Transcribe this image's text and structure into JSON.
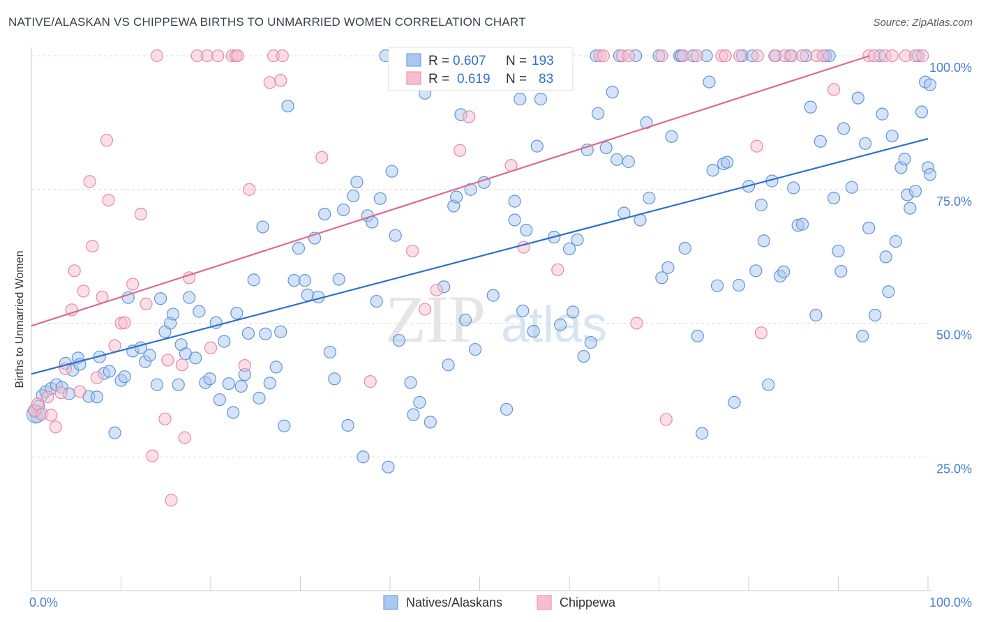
{
  "title": "NATIVE/ALASKAN VS CHIPPEWA BIRTHS TO UNMARRIED WOMEN CORRELATION CHART",
  "source": "Source: ZipAtlas.com",
  "watermark": {
    "zip": "ZIP",
    "atlas": "atlas"
  },
  "colors": {
    "blue_fill": "#a9c7ef",
    "blue_stroke": "#5f95d8",
    "blue_line": "#2e70cc",
    "pink_fill": "#f6bfd0",
    "pink_stroke": "#e987a6",
    "pink_line": "#e0688f",
    "tick_text": "#4a7fd0",
    "grid": "#dddddd"
  },
  "legend": {
    "rows": [
      {
        "r_label": "R = ",
        "r_value": "0.607",
        "n_label": "N = ",
        "n_value": "193"
      },
      {
        "r_label": "R = ",
        "r_value": "0.619",
        "n_label": "N = ",
        "n_value": "83"
      }
    ]
  },
  "bottom_legend": [
    "Natives/Alaskans",
    "Chippewa"
  ],
  "chart_data": {
    "type": "scatter",
    "title": "NATIVE/ALASKAN VS CHIPPEWA BIRTHS TO UNMARRIED WOMEN CORRELATION CHART",
    "xlabel": "",
    "ylabel": "Births to Unmarried Women",
    "xlim": [
      0,
      100
    ],
    "ylim": [
      0,
      100
    ],
    "x_tick_labels": [
      "0.0%",
      "100.0%"
    ],
    "y_tick_labels": [
      "25.0%",
      "50.0%",
      "75.0%",
      "100.0%"
    ],
    "y_ticks": [
      25,
      50,
      75,
      100
    ],
    "grid": "horizontal dashed",
    "legend_position": "top-center",
    "series": [
      {
        "name": "Natives/Alaskans",
        "R": 0.607,
        "N": 193,
        "trend": {
          "x": [
            0,
            100
          ],
          "y": [
            40.5,
            84.5
          ]
        },
        "points": [
          [
            0.4,
            33.5
          ],
          [
            0.6,
            32.5
          ],
          [
            0.8,
            34.5
          ],
          [
            1.2,
            36.5
          ],
          [
            1.6,
            37.2
          ],
          [
            2.2,
            37.8
          ],
          [
            2.8,
            38.5
          ],
          [
            3.4,
            38.0
          ],
          [
            3.8,
            42.5
          ],
          [
            4.2,
            36.8
          ],
          [
            4.6,
            41.2
          ],
          [
            5.2,
            43.5
          ],
          [
            5.4,
            42.3
          ],
          [
            6.4,
            36.3
          ],
          [
            7.3,
            36.2
          ],
          [
            7.6,
            43.7
          ],
          [
            8.1,
            40.6
          ],
          [
            8.7,
            41.0
          ],
          [
            9.3,
            29.5
          ],
          [
            10.0,
            39.3
          ],
          [
            10.4,
            40.0
          ],
          [
            10.8,
            54.8
          ],
          [
            11.3,
            44.8
          ],
          [
            12.2,
            45.4
          ],
          [
            12.7,
            42.8
          ],
          [
            13.2,
            44.0
          ],
          [
            14.0,
            38.5
          ],
          [
            14.4,
            54.6
          ],
          [
            14.9,
            48.4
          ],
          [
            15.5,
            50.0
          ],
          [
            15.8,
            51.7
          ],
          [
            16.4,
            38.5
          ],
          [
            16.7,
            46.0
          ],
          [
            17.2,
            44.3
          ],
          [
            17.6,
            54.8
          ],
          [
            18.3,
            43.5
          ],
          [
            18.7,
            52.2
          ],
          [
            19.4,
            38.9
          ],
          [
            19.9,
            39.6
          ],
          [
            20.6,
            50.1
          ],
          [
            21.0,
            35.7
          ],
          [
            21.5,
            46.6
          ],
          [
            22.0,
            38.7
          ],
          [
            22.5,
            33.3
          ],
          [
            22.9,
            51.9
          ],
          [
            23.4,
            38.2
          ],
          [
            23.8,
            40.4
          ],
          [
            24.2,
            48.1
          ],
          [
            24.8,
            58.1
          ],
          [
            25.4,
            36.0
          ],
          [
            25.8,
            68.0
          ],
          [
            26.1,
            48.0
          ],
          [
            26.6,
            38.8
          ],
          [
            27.3,
            41.8
          ],
          [
            27.8,
            48.4
          ],
          [
            28.2,
            30.8
          ],
          [
            28.6,
            90.6
          ],
          [
            29.3,
            58.0
          ],
          [
            29.8,
            64.0
          ],
          [
            30.5,
            58.0
          ],
          [
            30.8,
            55.3
          ],
          [
            31.6,
            65.9
          ],
          [
            32.0,
            54.9
          ],
          [
            32.7,
            70.4
          ],
          [
            33.3,
            44.6
          ],
          [
            33.8,
            39.6
          ],
          [
            34.3,
            58.2
          ],
          [
            34.8,
            71.2
          ],
          [
            35.3,
            30.9
          ],
          [
            35.9,
            73.8
          ],
          [
            36.3,
            76.4
          ],
          [
            37.0,
            25.0
          ],
          [
            37.5,
            70.1
          ],
          [
            38.0,
            68.9
          ],
          [
            38.5,
            54.1
          ],
          [
            38.9,
            73.3
          ],
          [
            39.5,
            100
          ],
          [
            39.8,
            23.1
          ],
          [
            40.2,
            78.4
          ],
          [
            40.6,
            66.4
          ],
          [
            41.0,
            46.8
          ],
          [
            42.3,
            38.9
          ],
          [
            42.6,
            32.9
          ],
          [
            43.3,
            35.2
          ],
          [
            43.6,
            100
          ],
          [
            43.9,
            93.0
          ],
          [
            44.5,
            31.5
          ],
          [
            44.8,
            97.2
          ],
          [
            46.0,
            56.8
          ],
          [
            46.5,
            42.2
          ],
          [
            47.1,
            71.9
          ],
          [
            47.4,
            73.6
          ],
          [
            47.9,
            89.0
          ],
          [
            48.4,
            50.6
          ],
          [
            49.0,
            75.0
          ],
          [
            49.5,
            45.1
          ],
          [
            50.5,
            76.3
          ],
          [
            51.5,
            55.2
          ],
          [
            53.0,
            33.9
          ],
          [
            53.4,
            100
          ],
          [
            53.9,
            69.3
          ],
          [
            53.9,
            72.8
          ],
          [
            54.5,
            91.9
          ],
          [
            54.8,
            52.3
          ],
          [
            55.2,
            67.4
          ],
          [
            56.0,
            48.5
          ],
          [
            56.4,
            83.1
          ],
          [
            56.8,
            91.9
          ],
          [
            57.8,
            100
          ],
          [
            58.3,
            66.1
          ],
          [
            59.0,
            49.7
          ],
          [
            59.4,
            100
          ],
          [
            60.0,
            63.9
          ],
          [
            60.4,
            52.1
          ],
          [
            60.9,
            65.6
          ],
          [
            61.6,
            43.8
          ],
          [
            62.0,
            82.4
          ],
          [
            62.4,
            46.4
          ],
          [
            63.0,
            100
          ],
          [
            63.2,
            89.2
          ],
          [
            64.1,
            82.8
          ],
          [
            64.8,
            93.2
          ],
          [
            65.3,
            80.6
          ],
          [
            65.6,
            100
          ],
          [
            66.1,
            70.6
          ],
          [
            66.6,
            80.2
          ],
          [
            67.4,
            100
          ],
          [
            67.9,
            69.3
          ],
          [
            68.6,
            87.5
          ],
          [
            68.9,
            73.4
          ],
          [
            70.0,
            100
          ],
          [
            70.3,
            58.5
          ],
          [
            71.0,
            60.4
          ],
          [
            71.4,
            84.9
          ],
          [
            72.3,
            100
          ],
          [
            72.5,
            100
          ],
          [
            72.9,
            64.0
          ],
          [
            73.8,
            100
          ],
          [
            74.3,
            47.6
          ],
          [
            74.8,
            29.4
          ],
          [
            75.3,
            100
          ],
          [
            75.6,
            95.1
          ],
          [
            76.0,
            78.6
          ],
          [
            76.5,
            57.0
          ],
          [
            77.2,
            79.8
          ],
          [
            77.6,
            80.1
          ],
          [
            78.4,
            35.2
          ],
          [
            78.9,
            57.1
          ],
          [
            79.3,
            100
          ],
          [
            80.0,
            75.6
          ],
          [
            80.4,
            100
          ],
          [
            80.8,
            59.8
          ],
          [
            81.4,
            72.1
          ],
          [
            81.7,
            65.4
          ],
          [
            82.2,
            38.5
          ],
          [
            82.6,
            76.6
          ],
          [
            83.0,
            100
          ],
          [
            83.5,
            58.8
          ],
          [
            83.9,
            59.6
          ],
          [
            84.6,
            100
          ],
          [
            85.0,
            75.3
          ],
          [
            85.5,
            68.3
          ],
          [
            86.0,
            68.5
          ],
          [
            86.4,
            100
          ],
          [
            86.9,
            90.4
          ],
          [
            87.5,
            51.5
          ],
          [
            88.0,
            84.0
          ],
          [
            88.6,
            100
          ],
          [
            89.0,
            100
          ],
          [
            89.5,
            73.4
          ],
          [
            90.0,
            63.5
          ],
          [
            90.3,
            59.7
          ],
          [
            90.6,
            86.4
          ],
          [
            91.5,
            75.4
          ],
          [
            92.2,
            92.1
          ],
          [
            92.7,
            47.6
          ],
          [
            93.0,
            83.6
          ],
          [
            93.4,
            67.8
          ],
          [
            94.1,
            51.5
          ],
          [
            94.6,
            100
          ],
          [
            94.9,
            89.1
          ],
          [
            95.3,
            62.4
          ],
          [
            95.6,
            55.9
          ],
          [
            96.0,
            85.0
          ],
          [
            96.4,
            65.3
          ],
          [
            97.0,
            79.1
          ],
          [
            97.4,
            80.7
          ],
          [
            97.7,
            74.0
          ],
          [
            98.0,
            71.5
          ],
          [
            98.6,
            74.7
          ],
          [
            98.9,
            100
          ],
          [
            99.3,
            89.5
          ],
          [
            99.7,
            95.1
          ],
          [
            100.0,
            79.1
          ],
          [
            100.5,
            77.8
          ],
          [
            101.0,
            94.6
          ]
        ]
      },
      {
        "name": "Chippewa",
        "R": 0.619,
        "N": 83,
        "trend": {
          "x": [
            0,
            93.5
          ],
          "y": [
            49.5,
            100
          ]
        },
        "points": [
          [
            0.3,
            33.7
          ],
          [
            0.7,
            34.9
          ],
          [
            1.2,
            33.0
          ],
          [
            1.8,
            36.2
          ],
          [
            2.2,
            32.8
          ],
          [
            2.7,
            30.6
          ],
          [
            3.3,
            37.0
          ],
          [
            3.8,
            41.5
          ],
          [
            4.5,
            52.5
          ],
          [
            4.8,
            59.8
          ],
          [
            5.4,
            37.2
          ],
          [
            5.8,
            56.0
          ],
          [
            6.5,
            76.5
          ],
          [
            6.8,
            64.4
          ],
          [
            7.3,
            39.8
          ],
          [
            7.9,
            54.9
          ],
          [
            8.4,
            84.2
          ],
          [
            8.6,
            73.0
          ],
          [
            9.3,
            45.8
          ],
          [
            10.0,
            50.0
          ],
          [
            10.4,
            50.1
          ],
          [
            11.3,
            57.3
          ],
          [
            12.2,
            70.4
          ],
          [
            12.8,
            53.6
          ],
          [
            13.5,
            25.2
          ],
          [
            14.0,
            100
          ],
          [
            14.9,
            32.1
          ],
          [
            15.2,
            43.1
          ],
          [
            15.6,
            16.9
          ],
          [
            16.8,
            42.2
          ],
          [
            17.1,
            28.6
          ],
          [
            17.6,
            58.5
          ],
          [
            18.5,
            100
          ],
          [
            19.6,
            100
          ],
          [
            20.0,
            45.4
          ],
          [
            20.8,
            100
          ],
          [
            22.4,
            100
          ],
          [
            22.8,
            100
          ],
          [
            23.0,
            100
          ],
          [
            23.8,
            42.1
          ],
          [
            24.3,
            75.0
          ],
          [
            26.6,
            95.0
          ],
          [
            27.0,
            100
          ],
          [
            27.8,
            95.4
          ],
          [
            28.0,
            100
          ],
          [
            32.4,
            81.0
          ],
          [
            37.8,
            39.1
          ],
          [
            42.5,
            63.5
          ],
          [
            43.9,
            52.6
          ],
          [
            45.2,
            56.2
          ],
          [
            47.8,
            82.3
          ],
          [
            48.8,
            88.6
          ],
          [
            53.5,
            79.5
          ],
          [
            54.9,
            64.2
          ],
          [
            58.7,
            60.0
          ],
          [
            63.4,
            100
          ],
          [
            63.8,
            100
          ],
          [
            65.9,
            100
          ],
          [
            66.6,
            100
          ],
          [
            67.5,
            50.0
          ],
          [
            70.3,
            100
          ],
          [
            72.7,
            100
          ],
          [
            74.2,
            100
          ],
          [
            77.0,
            100
          ],
          [
            77.4,
            100
          ],
          [
            79.0,
            100
          ],
          [
            81.0,
            100
          ],
          [
            82.9,
            100
          ],
          [
            84.0,
            100
          ],
          [
            84.8,
            100
          ],
          [
            86.0,
            100
          ],
          [
            87.6,
            100
          ],
          [
            88.3,
            100
          ],
          [
            93.4,
            100
          ],
          [
            94.0,
            100
          ],
          [
            95.2,
            100
          ],
          [
            96.0,
            100
          ],
          [
            97.5,
            100
          ],
          [
            98.6,
            100
          ],
          [
            99.4,
            100
          ],
          [
            70.8,
            32.0
          ],
          [
            89.5,
            93.7
          ],
          [
            80.9,
            83.1
          ],
          [
            81.4,
            48.2
          ]
        ]
      }
    ]
  }
}
